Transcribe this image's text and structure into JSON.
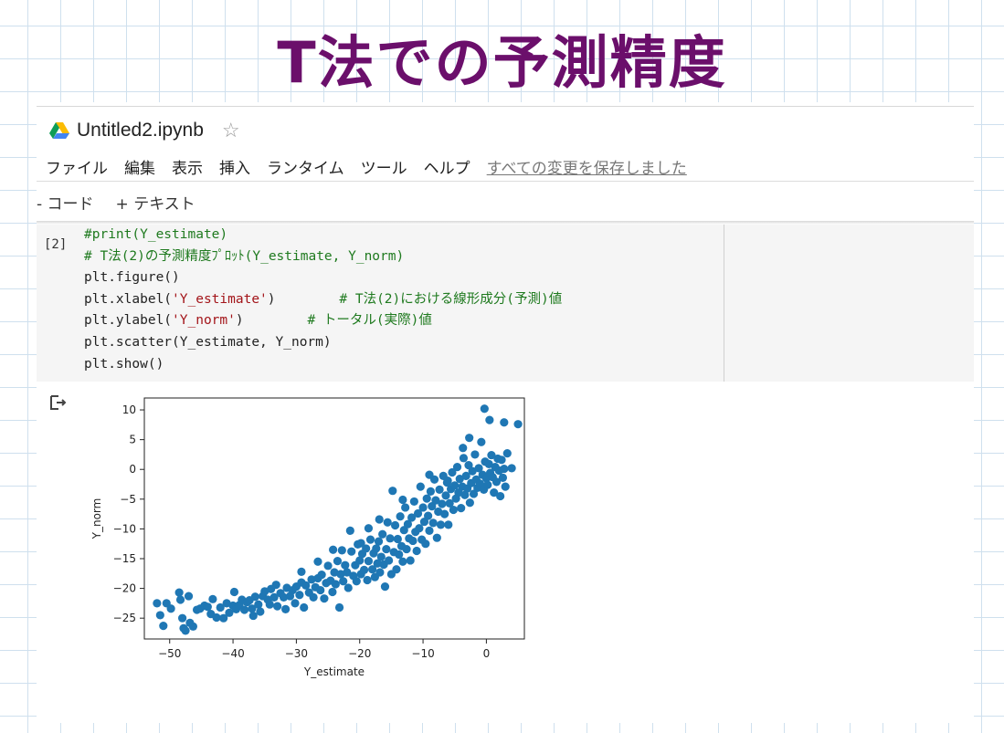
{
  "slide": {
    "title": "T法での予測精度"
  },
  "colab": {
    "doc_title": "Untitled2.ipynb",
    "menu": [
      "ファイル",
      "編集",
      "表示",
      "挿入",
      "ランタイム",
      "ツール",
      "ヘルプ"
    ],
    "save_status": "すべての変更を保存しました",
    "toolbar": {
      "code_label": "- コード",
      "text_label": "+ テキスト"
    },
    "cell": {
      "exec_count": "[2]",
      "lines": [
        {
          "code": "",
          "comment": "#print(Y_estimate)"
        },
        {
          "code": "",
          "comment": "# T法(2)の予測精度ﾌﾟﾛｯﾄ(Y_estimate, Y_norm)"
        },
        {
          "code": "plt.figure()",
          "comment": ""
        },
        {
          "pre": "plt.xlabel(",
          "str": "'Y_estimate'",
          "post": ")        ",
          "comment": "# T法(2)における線形成分(予測)値"
        },
        {
          "pre": "plt.ylabel(",
          "str": "'Y_norm'",
          "post": ")        ",
          "comment": "# トータル(実際)値"
        },
        {
          "code": "plt.scatter(Y_estimate, Y_norm)",
          "comment": ""
        },
        {
          "code": "plt.show()",
          "comment": ""
        }
      ]
    }
  },
  "chart_data": {
    "type": "scatter",
    "xlabel": "Y_estimate",
    "ylabel": "Y_norm",
    "xlim": [
      -54,
      6
    ],
    "ylim": [
      -28.5,
      12
    ],
    "xticks": [
      -50,
      -40,
      -30,
      -20,
      -10,
      0
    ],
    "yticks": [
      10,
      5,
      0,
      -5,
      -10,
      -15,
      -20,
      -25
    ],
    "color": "#1f77b4",
    "points": [
      [
        -52,
        -22.5
      ],
      [
        -51.5,
        -24.5
      ],
      [
        -51,
        -26.3
      ],
      [
        -50.5,
        -22.5
      ],
      [
        -49.8,
        -23.4
      ],
      [
        -48.5,
        -20.7
      ],
      [
        -48.3,
        -21.9
      ],
      [
        -48,
        -25
      ],
      [
        -47.8,
        -26.7
      ],
      [
        -47.5,
        -27.1
      ],
      [
        -47,
        -21.3
      ],
      [
        -46.8,
        -25.8
      ],
      [
        -46.3,
        -26.4
      ],
      [
        -45.7,
        -23.6
      ],
      [
        -45.2,
        -23.4
      ],
      [
        -44.5,
        -22.9
      ],
      [
        -44,
        -23.1
      ],
      [
        -43.5,
        -24.3
      ],
      [
        -43.2,
        -21.8
      ],
      [
        -42.6,
        -24.9
      ],
      [
        -42,
        -23.2
      ],
      [
        -41.5,
        -25
      ],
      [
        -41,
        -22.5
      ],
      [
        -40.6,
        -24.1
      ],
      [
        -40,
        -22.9
      ],
      [
        -39.8,
        -20.6
      ],
      [
        -39.5,
        -23.5
      ],
      [
        -39,
        -22.8
      ],
      [
        -38.6,
        -21.9
      ],
      [
        -38.2,
        -23.6
      ],
      [
        -37.8,
        -22.3
      ],
      [
        -37.4,
        -22
      ],
      [
        -37,
        -23.4
      ],
      [
        -36.8,
        -24.6
      ],
      [
        -36.5,
        -21.4
      ],
      [
        -36,
        -22.7
      ],
      [
        -35.7,
        -23.9
      ],
      [
        -35.3,
        -21.3
      ],
      [
        -35,
        -20.5
      ],
      [
        -34.5,
        -21.9
      ],
      [
        -34.2,
        -22.7
      ],
      [
        -34,
        -20.1
      ],
      [
        -33.5,
        -21.5
      ],
      [
        -33.2,
        -19.4
      ],
      [
        -33,
        -23
      ],
      [
        -32.5,
        -20.8
      ],
      [
        -32,
        -21.5
      ],
      [
        -31.7,
        -23.5
      ],
      [
        -31.5,
        -19.9
      ],
      [
        -31,
        -21.3
      ],
      [
        -30.6,
        -20.3
      ],
      [
        -30.2,
        -22.5
      ],
      [
        -30,
        -19.7
      ],
      [
        -29.5,
        -21.1
      ],
      [
        -29.2,
        -19
      ],
      [
        -28.8,
        -23.2
      ],
      [
        -28.5,
        -19.5
      ],
      [
        -28,
        -20.7
      ],
      [
        -27.6,
        -18.5
      ],
      [
        -27.3,
        -21.5
      ],
      [
        -27,
        -19.8
      ],
      [
        -26.6,
        -18.3
      ],
      [
        -26.2,
        -20.3
      ],
      [
        -26,
        -17.7
      ],
      [
        -25.6,
        -21.7
      ],
      [
        -25.3,
        -19.1
      ],
      [
        -25,
        -16.2
      ],
      [
        -24.6,
        -18.7
      ],
      [
        -24.3,
        -20.6
      ],
      [
        -24,
        -17.3
      ],
      [
        -23.8,
        -19.3
      ],
      [
        -23.5,
        -15.4
      ],
      [
        -23.2,
        -23.2
      ],
      [
        -23,
        -17.6
      ],
      [
        -22.6,
        -18.8
      ],
      [
        -22.3,
        -16.1
      ],
      [
        -22,
        -17.3
      ],
      [
        -21.8,
        -19.9
      ],
      [
        -21.5,
        -10.3
      ],
      [
        -21.3,
        -13.8
      ],
      [
        -21,
        -17.9
      ],
      [
        -20.7,
        -16.1
      ],
      [
        -20.5,
        -18.8
      ],
      [
        -20.3,
        -12.6
      ],
      [
        -20,
        -15.3
      ],
      [
        -19.8,
        -17.6
      ],
      [
        -19.6,
        -14.2
      ],
      [
        -19.3,
        -16.9
      ],
      [
        -19,
        -13.3
      ],
      [
        -18.8,
        -18.6
      ],
      [
        -18.6,
        -15.4
      ],
      [
        -18.3,
        -11.8
      ],
      [
        -18,
        -16.8
      ],
      [
        -17.8,
        -14.1
      ],
      [
        -17.6,
        -18.1
      ],
      [
        -17.4,
        -13.3
      ],
      [
        -17.2,
        -15.8
      ],
      [
        -17,
        -12.1
      ],
      [
        -16.8,
        -17.3
      ],
      [
        -16.6,
        -14.7
      ],
      [
        -16.4,
        -10.9
      ],
      [
        -16.2,
        -16
      ],
      [
        -16,
        -19.7
      ],
      [
        -15.8,
        -13.4
      ],
      [
        -15.6,
        -8.9
      ],
      [
        -15.4,
        -15.3
      ],
      [
        -15.2,
        -11.6
      ],
      [
        -15,
        -17.6
      ],
      [
        -14.8,
        -3.6
      ],
      [
        -14.6,
        -13.9
      ],
      [
        -14.4,
        -9.4
      ],
      [
        -14.2,
        -16.8
      ],
      [
        -14,
        -11.7
      ],
      [
        -13.8,
        -14.3
      ],
      [
        -13.6,
        -7.9
      ],
      [
        -13.4,
        -12.9
      ],
      [
        -13.2,
        -15.5
      ],
      [
        -13,
        -10.2
      ],
      [
        -12.8,
        -6.4
      ],
      [
        -12.6,
        -13.4
      ],
      [
        -12.4,
        -9.2
      ],
      [
        -12.2,
        -11.6
      ],
      [
        -12,
        -15.3
      ],
      [
        -11.8,
        -8.1
      ],
      [
        -11.6,
        -12
      ],
      [
        -11.4,
        -5.4
      ],
      [
        -11.2,
        -10.5
      ],
      [
        -11,
        -13.7
      ],
      [
        -10.8,
        -7.4
      ],
      [
        -10.6,
        -9.9
      ],
      [
        -10.4,
        -2.9
      ],
      [
        -10.2,
        -11.8
      ],
      [
        -10,
        -6.4
      ],
      [
        -9.8,
        -8.8
      ],
      [
        -9.6,
        -12.5
      ],
      [
        -9.4,
        -4.9
      ],
      [
        -9.2,
        -7.8
      ],
      [
        -9,
        -10.3
      ],
      [
        -8.8,
        -3.7
      ],
      [
        -8.6,
        -6.2
      ],
      [
        -8.4,
        -9
      ],
      [
        -8.2,
        -1.7
      ],
      [
        -8,
        -5.2
      ],
      [
        -7.8,
        -11.5
      ],
      [
        -7.6,
        -7.1
      ],
      [
        -7.4,
        -3.4
      ],
      [
        -7.2,
        -9.3
      ],
      [
        -7,
        -5.8
      ],
      [
        -6.8,
        -1.1
      ],
      [
        -6.6,
        -7.5
      ],
      [
        -6.4,
        -4.4
      ],
      [
        -6.2,
        -2.2
      ],
      [
        -6,
        -9.3
      ],
      [
        -5.8,
        -5.7
      ],
      [
        -5.6,
        -3.3
      ],
      [
        -5.4,
        -0.5
      ],
      [
        -5.2,
        -6.8
      ],
      [
        -5,
        -2.7
      ],
      [
        -4.8,
        -4.9
      ],
      [
        -4.6,
        0.4
      ],
      [
        -4.4,
        -3.9
      ],
      [
        -4.2,
        -1.6
      ],
      [
        -4,
        -6.5
      ],
      [
        -3.8,
        -2.9
      ],
      [
        -3.6,
        1.9
      ],
      [
        -3.4,
        -4.3
      ],
      [
        -3.2,
        -1.1
      ],
      [
        -3,
        -3.2
      ],
      [
        -2.8,
        0.7
      ],
      [
        -2.6,
        -5.6
      ],
      [
        -2.4,
        -2.3
      ],
      [
        -2.2,
        -0.3
      ],
      [
        -2,
        -4.1
      ],
      [
        -1.8,
        2.5
      ],
      [
        -1.6,
        -1.7
      ],
      [
        -1.4,
        -3.1
      ],
      [
        -1.2,
        0.2
      ],
      [
        -1,
        -2.4
      ],
      [
        -0.8,
        4.6
      ],
      [
        -0.6,
        -0.9
      ],
      [
        -0.4,
        -3.4
      ],
      [
        -0.2,
        1.3
      ],
      [
        0,
        -1.5
      ],
      [
        0.2,
        -2.6
      ],
      [
        0.4,
        0.9
      ],
      [
        0.6,
        -0.6
      ],
      [
        0.8,
        2.4
      ],
      [
        1,
        -1.3
      ],
      [
        1.2,
        -3.9
      ],
      [
        1.4,
        0.4
      ],
      [
        1.6,
        -2.1
      ],
      [
        1.8,
        1.8
      ],
      [
        2,
        -0.2
      ],
      [
        2.2,
        -4.5
      ],
      [
        2.4,
        1.6
      ],
      [
        2.6,
        -1.4
      ],
      [
        2.8,
        0.1
      ],
      [
        3,
        -2.9
      ],
      [
        3.3,
        2.7
      ],
      [
        4,
        0.2
      ],
      [
        5,
        7.6
      ],
      [
        2.8,
        7.9
      ],
      [
        0.5,
        8.3
      ],
      [
        -0.3,
        10.2
      ],
      [
        -2.7,
        5.3
      ],
      [
        -3.7,
        3.6
      ],
      [
        -6.1,
        -1.9
      ],
      [
        -9,
        -0.9
      ],
      [
        -13.2,
        -5.1
      ],
      [
        -16.9,
        -8.4
      ],
      [
        -18.6,
        -9.9
      ],
      [
        -19.8,
        -12.4
      ],
      [
        -22.8,
        -13.6
      ],
      [
        -24.2,
        -13.5
      ],
      [
        -26.6,
        -15.5
      ],
      [
        -29.2,
        -17.2
      ]
    ]
  }
}
